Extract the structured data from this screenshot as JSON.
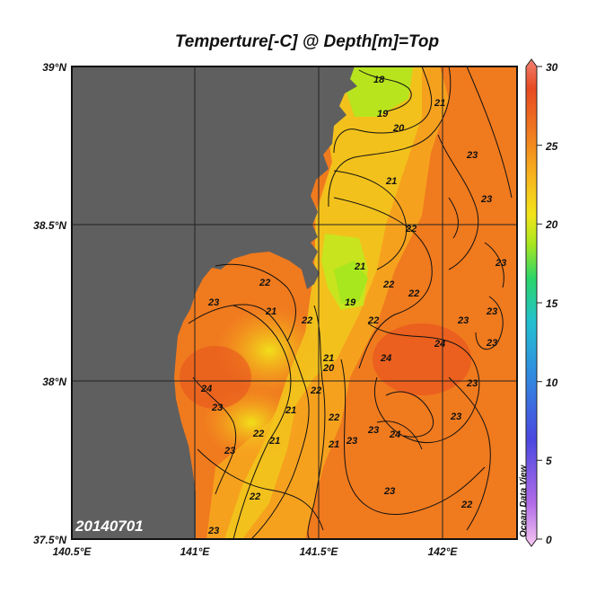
{
  "title": "Temperture[-C] @ Depth[m]=Top",
  "y_axis": {
    "ticks": [
      "39°N",
      "38.5°N",
      "38°N",
      "37.5°N"
    ]
  },
  "x_axis": {
    "ticks": [
      "140.5°E",
      "141°E",
      "141.5°E",
      "142°E"
    ]
  },
  "colorbar": {
    "ticks": [
      "30",
      "25",
      "20",
      "15",
      "10",
      "5",
      "0"
    ],
    "range": [
      0,
      30
    ],
    "colors": [
      "#f7c8f2",
      "#b06be8",
      "#4a48e0",
      "#2f8fe0",
      "#22c0d0",
      "#2ad66a",
      "#a8e61e",
      "#f2e51a",
      "#f8b41c",
      "#f07a1e",
      "#e84a22",
      "#f08070"
    ],
    "watermark": "Ocean Data View"
  },
  "date_stamp": "20140701",
  "map_colors": {
    "land": "#5f5f5f",
    "ocean_warm": "#f07a1e",
    "ocean_mid": "#f6a51e",
    "ocean_cool": "#f2d41c",
    "ocean_cold": "#b8e41e"
  },
  "contour_labels": [
    "18",
    "19",
    "20",
    "21",
    "21",
    "22",
    "22",
    "23",
    "23",
    "23",
    "23",
    "23",
    "24",
    "22",
    "22",
    "23",
    "22",
    "21",
    "22",
    "21",
    "21",
    "20",
    "19",
    "21",
    "23",
    "24",
    "24",
    "24",
    "23",
    "23",
    "22",
    "22",
    "21",
    "21",
    "23",
    "23",
    "22",
    "23",
    "23",
    "22",
    "22",
    "23",
    "23"
  ]
}
